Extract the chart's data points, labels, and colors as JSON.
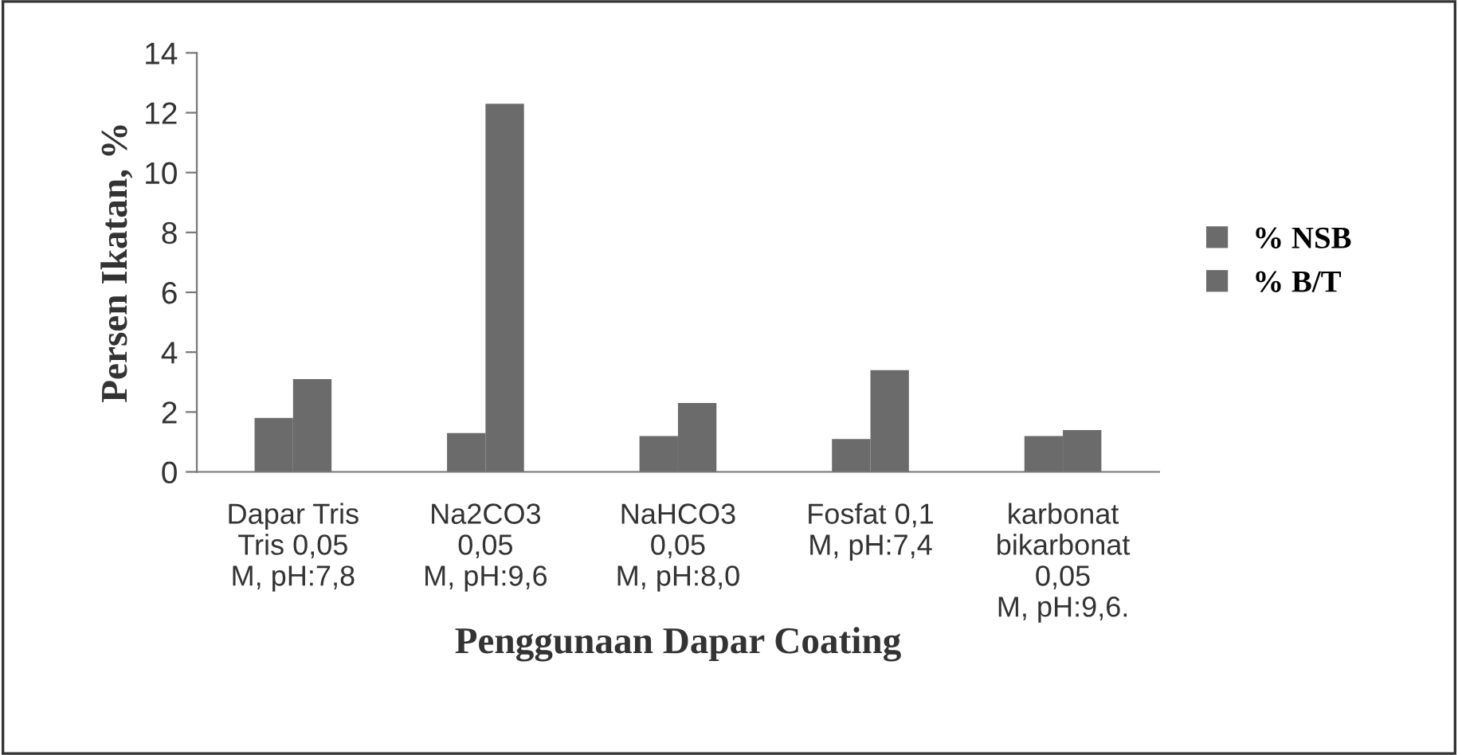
{
  "chart_data": {
    "type": "bar",
    "xlabel": "Penggunaan Dapar Coating",
    "ylabel": "Persen Ikatan, %",
    "categories": [
      "Dapar Tris\nTris 0,05\nM, pH:7,8",
      "Na2CO3\n0,05\nM, pH:9,6",
      "NaHCO3\n0,05\nM, pH:8,0",
      "Fosfat 0,1\nM, pH:7,4",
      "karbonat\nbikarbonat\n0,05\nM, pH:9,6."
    ],
    "series": [
      {
        "name": "% NSB",
        "color": "#6b6b6b",
        "values": [
          1.8,
          1.3,
          1.2,
          1.1,
          1.2
        ]
      },
      {
        "name": "% B/T",
        "color": "#6b6b6b",
        "values": [
          3.1,
          12.3,
          2.3,
          3.4,
          1.4
        ]
      }
    ],
    "ylim": [
      0,
      14
    ],
    "yticks": [
      0,
      2,
      4,
      6,
      8,
      10,
      12,
      14
    ],
    "grid": false,
    "legend": "right"
  }
}
